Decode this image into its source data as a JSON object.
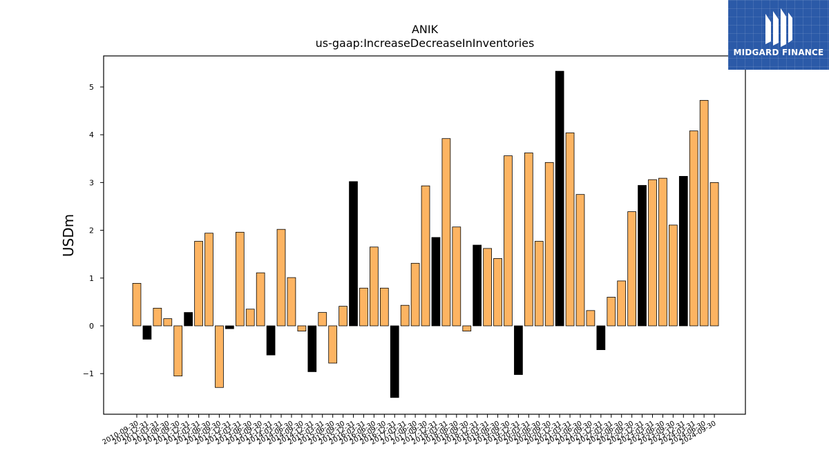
{
  "colors": {
    "positive": "#fdb462",
    "negative": "#000000",
    "axis": "#000000",
    "background": "#ffffff",
    "logo_bg": "#2b5aa8"
  },
  "logo": {
    "text": "MIDGARD FINANCE",
    "icon": "midgard-logo-icon"
  },
  "chart_data": {
    "type": "bar",
    "title": "ANIK",
    "subtitle": "us-gaap:IncreaseDecreaseInInventories",
    "xlabel": "",
    "ylabel": "USDm",
    "ylim": [
      -1.85,
      5.65
    ],
    "yticks": [
      -1,
      0,
      1,
      2,
      3,
      4,
      5
    ],
    "ytick_labels": [
      "−1",
      "0",
      "1",
      "2",
      "3",
      "4",
      "5"
    ],
    "grid": false,
    "categories": [
      "2010-09-30",
      "2010-12-31",
      "2011-03-31",
      "2011-06-30",
      "2011-09-30",
      "2011-12-31",
      "2012-03-31",
      "2012-06-30",
      "2012-09-30",
      "2012-12-31",
      "2013-03-31",
      "2013-06-30",
      "2013-09-30",
      "2013-12-31",
      "2014-03-31",
      "2014-06-30",
      "2014-09-30",
      "2014-12-31",
      "2015-03-31",
      "2015-06-30",
      "2015-09-30",
      "2015-12-31",
      "2016-03-31",
      "2016-06-30",
      "2016-09-30",
      "2016-12-31",
      "2017-03-31",
      "2017-06-30",
      "2017-09-30",
      "2017-12-31",
      "2018-03-31",
      "2018-06-30",
      "2018-09-30",
      "2018-12-31",
      "2019-03-31",
      "2019-06-30",
      "2019-09-30",
      "2019-12-31",
      "2020-03-31",
      "2020-06-30",
      "2020-09-30",
      "2020-12-31",
      "2021-03-31",
      "2021-06-30",
      "2021-09-30",
      "2021-12-31",
      "2022-03-31",
      "2022-06-30",
      "2022-09-30",
      "2022-12-31",
      "2023-03-31",
      "2023-06-30",
      "2023-09-30",
      "2023-12-31",
      "2024-03-31",
      "2024-06-30",
      "2024-09-30"
    ],
    "values": [
      0.89,
      -0.28,
      0.37,
      0.15,
      -1.05,
      0.28,
      1.77,
      1.94,
      -1.29,
      -0.06,
      1.96,
      0.35,
      1.11,
      -0.61,
      2.02,
      1.01,
      -0.11,
      -0.96,
      0.28,
      -0.78,
      0.41,
      3.02,
      0.79,
      1.65,
      0.79,
      -1.5,
      0.43,
      1.31,
      2.93,
      1.85,
      3.92,
      2.07,
      -0.11,
      1.69,
      1.62,
      1.41,
      3.56,
      -1.02,
      3.62,
      1.77,
      3.42,
      5.33,
      4.04,
      2.75,
      0.32,
      -0.5,
      0.6,
      0.94,
      2.39,
      2.94,
      3.06,
      3.09,
      2.11,
      3.13,
      4.08,
      4.72,
      3.0
    ],
    "highlight": [
      false,
      true,
      false,
      false,
      false,
      true,
      false,
      false,
      false,
      true,
      false,
      false,
      false,
      true,
      false,
      false,
      false,
      true,
      false,
      false,
      false,
      true,
      false,
      false,
      false,
      true,
      false,
      false,
      false,
      true,
      false,
      false,
      false,
      true,
      false,
      false,
      false,
      true,
      false,
      false,
      false,
      true,
      false,
      false,
      false,
      true,
      false,
      false,
      false,
      true,
      false,
      false,
      false,
      true,
      false,
      false,
      false
    ]
  }
}
